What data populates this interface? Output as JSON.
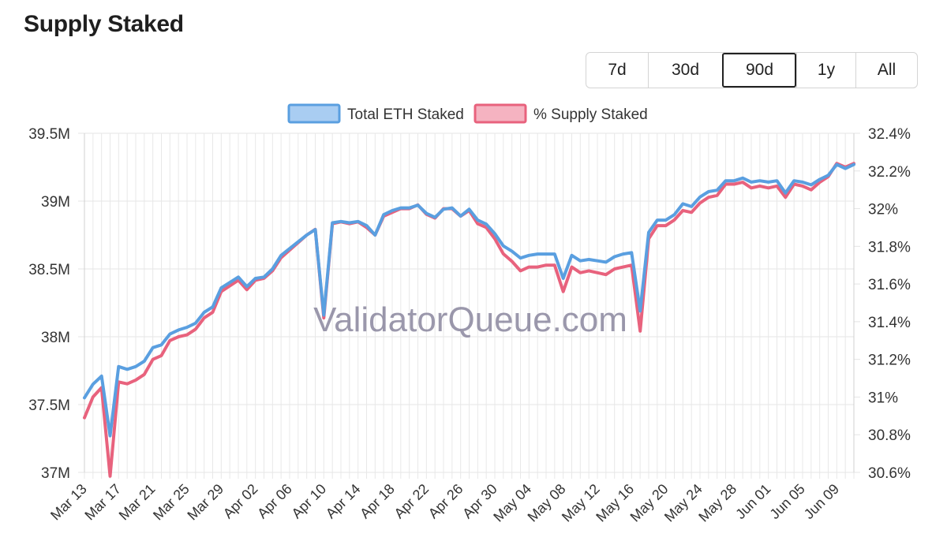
{
  "header": {
    "title": "Supply Staked"
  },
  "range_selector": {
    "options": [
      {
        "label": "7d",
        "active": false
      },
      {
        "label": "30d",
        "active": false
      },
      {
        "label": "90d",
        "active": true
      },
      {
        "label": "1y",
        "active": false
      },
      {
        "label": "All",
        "active": false
      }
    ]
  },
  "watermark": "ValidatorQueue.com",
  "chart_data": {
    "type": "line",
    "x_tick_labels": [
      "Mar 13",
      "Mar 17",
      "Mar 21",
      "Mar 25",
      "Mar 29",
      "Apr 02",
      "Apr 06",
      "Apr 10",
      "Apr 14",
      "Apr 18",
      "Apr 22",
      "Apr 26",
      "Apr 30",
      "May 04",
      "May 08",
      "May 12",
      "May 16",
      "May 20",
      "May 24",
      "May 28",
      "Jun 01",
      "Jun 05",
      "Jun 09"
    ],
    "x_tick_step_days": 4,
    "y_left": {
      "min": 37000000,
      "max": 39500000,
      "ticks": [
        "37M",
        "37.5M",
        "38M",
        "38.5M",
        "39M",
        "39.5M"
      ]
    },
    "y_right": {
      "min": 30.6,
      "max": 32.4,
      "ticks": [
        "30.6%",
        "30.8%",
        "31%",
        "31.2%",
        "31.4%",
        "31.6%",
        "31.8%",
        "32%",
        "32.2%",
        "32.4%"
      ]
    },
    "grid": true,
    "legend_position": "top",
    "series": [
      {
        "name": "Total ETH Staked",
        "axis": "left",
        "color": "#5a9fe0",
        "fill": "#a9cdf2",
        "values": [
          37550000,
          37650000,
          37710000,
          37270000,
          37780000,
          37760000,
          37780000,
          37820000,
          37920000,
          37940000,
          38020000,
          38050000,
          38070000,
          38100000,
          38180000,
          38220000,
          38360000,
          38400000,
          38440000,
          38370000,
          38430000,
          38440000,
          38500000,
          38600000,
          38650000,
          38700000,
          38750000,
          38790000,
          38160000,
          38840000,
          38850000,
          38840000,
          38850000,
          38820000,
          38750000,
          38900000,
          38930000,
          38950000,
          38950000,
          38970000,
          38910000,
          38880000,
          38940000,
          38950000,
          38890000,
          38940000,
          38860000,
          38830000,
          38760000,
          38670000,
          38630000,
          38580000,
          38600000,
          38610000,
          38610000,
          38610000,
          38430000,
          38600000,
          38560000,
          38570000,
          38560000,
          38550000,
          38590000,
          38610000,
          38620000,
          38190000,
          38770000,
          38860000,
          38860000,
          38900000,
          38980000,
          38960000,
          39030000,
          39070000,
          39080000,
          39150000,
          39150000,
          39170000,
          39140000,
          39150000,
          39140000,
          39150000,
          39060000,
          39150000,
          39140000,
          39120000,
          39160000,
          39190000,
          39270000,
          39240000,
          39270000
        ]
      },
      {
        "name": "% Supply Staked",
        "axis": "right",
        "color": "#e8627d",
        "fill": "#f5b3c1",
        "values": [
          30.89,
          31.0,
          31.05,
          30.58,
          31.08,
          31.07,
          31.09,
          31.12,
          31.2,
          31.22,
          31.3,
          31.32,
          31.33,
          31.36,
          31.42,
          31.45,
          31.56,
          31.59,
          31.62,
          31.57,
          31.62,
          31.63,
          31.67,
          31.74,
          31.78,
          31.82,
          31.86,
          31.89,
          31.42,
          31.92,
          31.93,
          31.92,
          31.93,
          31.9,
          31.86,
          31.96,
          31.98,
          32.0,
          32.0,
          32.02,
          31.97,
          31.95,
          32.0,
          32.0,
          31.96,
          31.99,
          31.92,
          31.9,
          31.84,
          31.76,
          31.72,
          31.67,
          31.69,
          31.69,
          31.7,
          31.7,
          31.56,
          31.69,
          31.66,
          31.67,
          31.66,
          31.65,
          31.68,
          31.69,
          31.7,
          31.35,
          31.84,
          31.91,
          31.91,
          31.94,
          31.99,
          31.98,
          32.03,
          32.06,
          32.07,
          32.13,
          32.13,
          32.14,
          32.11,
          32.12,
          32.11,
          32.12,
          32.06,
          32.13,
          32.12,
          32.1,
          32.14,
          32.17,
          32.24,
          32.22,
          32.24
        ]
      }
    ]
  }
}
